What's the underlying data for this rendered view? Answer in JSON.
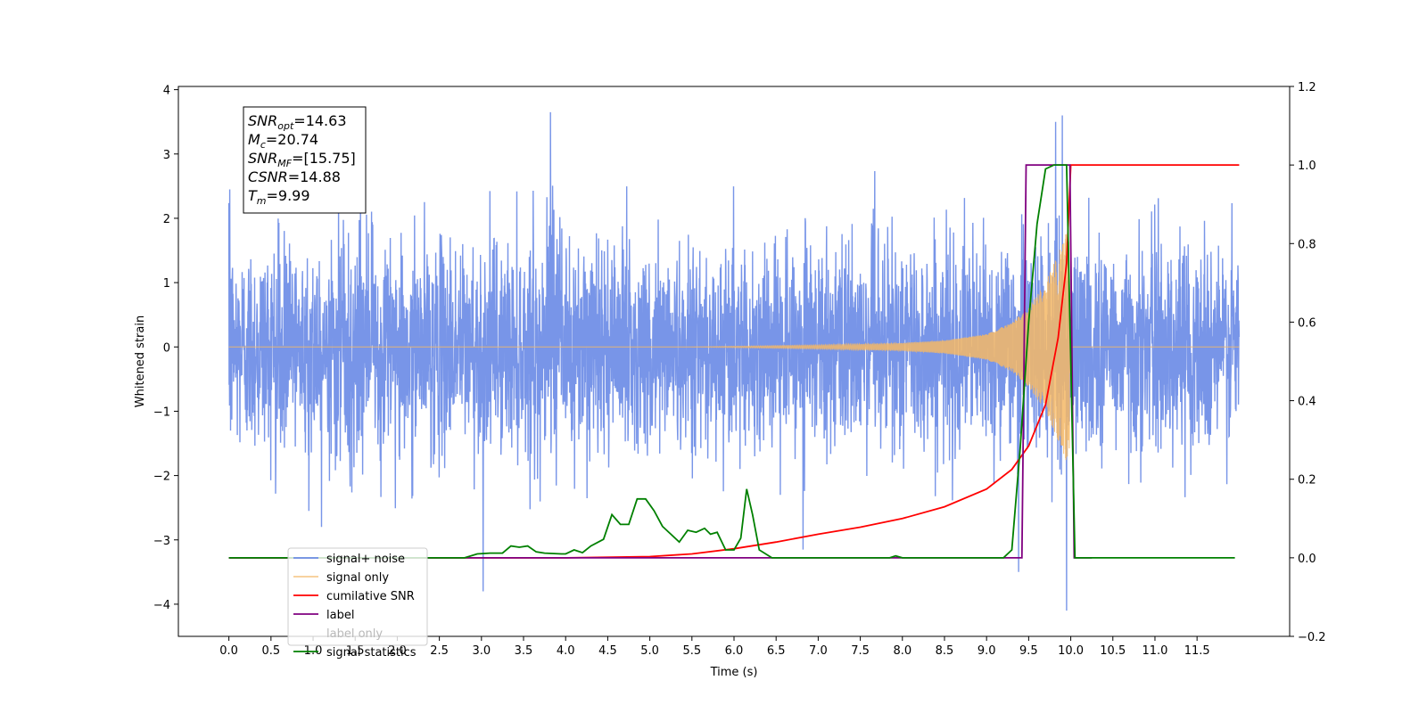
{
  "chart_data": {
    "type": "line",
    "title": "",
    "xlabel": "Time (s)",
    "ylabel": "Whitened strain",
    "y2label": "",
    "xlim": [
      -0.6,
      12.6
    ],
    "ylim": [
      -4.5,
      4.05
    ],
    "y2lim": [
      -0.2,
      1.2
    ],
    "x_ticks": [
      0.0,
      0.5,
      1.0,
      1.5,
      2.0,
      2.5,
      3.0,
      3.5,
      4.0,
      4.5,
      5.0,
      5.5,
      6.0,
      6.5,
      7.0,
      7.5,
      8.0,
      8.5,
      9.0,
      9.5,
      10.0,
      10.5,
      11.0,
      11.5
    ],
    "x_tick_labels": [
      "0.0",
      "0.5",
      "1.0",
      "1.5",
      "2.0",
      "2.5",
      "3.0",
      "3.5",
      "4.0",
      "4.5",
      "5.0",
      "5.5",
      "6.0",
      "6.5",
      "7.0",
      "7.5",
      "8.0",
      "8.5",
      "9.0",
      "9.5",
      "10.0",
      "10.5",
      "11.0",
      "11.5"
    ],
    "y_ticks": [
      4,
      3,
      2,
      1,
      0,
      -1,
      -2,
      -3,
      -4
    ],
    "y_tick_labels": [
      "4",
      "3",
      "2",
      "1",
      "0",
      "−1",
      "−2",
      "−3",
      "−4"
    ],
    "y2_ticks": [
      1.2,
      1.0,
      0.8,
      0.6,
      0.4,
      0.2,
      0.0,
      -0.2
    ],
    "y2_tick_labels": [
      "1.2",
      "1.0",
      "0.8",
      "0.6",
      "0.4",
      "0.2",
      "0.0",
      "−0.2"
    ],
    "grid": false,
    "legend_position": "lower-left",
    "series": [
      {
        "name": "signal+ noise",
        "axis": "left",
        "color": "#6d8ce6",
        "kind": "noise-band",
        "x_range": [
          0.0,
          12.0
        ],
        "typical_amplitude": 1.3,
        "peaks": [
          {
            "x": 0.01,
            "y": 2.45
          },
          {
            "x": 0.02,
            "y": -1.3
          },
          {
            "x": 0.95,
            "y": -2.55
          },
          {
            "x": 1.1,
            "y": -2.8
          },
          {
            "x": 3.02,
            "y": -3.8
          },
          {
            "x": 3.82,
            "y": 3.65
          },
          {
            "x": 6.55,
            "y": -2.3
          },
          {
            "x": 6.82,
            "y": -3.15
          },
          {
            "x": 9.38,
            "y": -3.5
          },
          {
            "x": 9.82,
            "y": 3.5
          },
          {
            "x": 9.9,
            "y": 3.6
          },
          {
            "x": 9.95,
            "y": -4.1
          }
        ]
      },
      {
        "name": "signal only",
        "axis": "left",
        "color": "#f4b866",
        "kind": "chirp",
        "x_range": [
          0.0,
          12.0
        ],
        "merger_time": 9.99,
        "envelope": [
          {
            "x": 0.0,
            "amp": 0.0
          },
          {
            "x": 5.5,
            "amp": 0.0
          },
          {
            "x": 7.0,
            "amp": 0.03
          },
          {
            "x": 8.0,
            "amp": 0.06
          },
          {
            "x": 8.5,
            "amp": 0.1
          },
          {
            "x": 9.0,
            "amp": 0.2
          },
          {
            "x": 9.3,
            "amp": 0.38
          },
          {
            "x": 9.5,
            "amp": 0.62
          },
          {
            "x": 9.7,
            "amp": 1.0
          },
          {
            "x": 9.85,
            "amp": 1.45
          },
          {
            "x": 9.95,
            "amp": 1.8
          },
          {
            "x": 9.99,
            "amp": 1.85
          },
          {
            "x": 10.01,
            "amp": 0.05
          },
          {
            "x": 10.03,
            "amp": 0.0
          },
          {
            "x": 12.0,
            "amp": 0.0
          }
        ]
      },
      {
        "name": "cumilative SNR",
        "axis": "right",
        "color": "#ff0000",
        "points": [
          {
            "x": 0.0,
            "y": 0.0
          },
          {
            "x": 4.0,
            "y": 0.0
          },
          {
            "x": 5.0,
            "y": 0.003
          },
          {
            "x": 5.5,
            "y": 0.01
          },
          {
            "x": 6.0,
            "y": 0.023
          },
          {
            "x": 6.5,
            "y": 0.04
          },
          {
            "x": 7.0,
            "y": 0.06
          },
          {
            "x": 7.5,
            "y": 0.078
          },
          {
            "x": 8.0,
            "y": 0.1
          },
          {
            "x": 8.5,
            "y": 0.13
          },
          {
            "x": 9.0,
            "y": 0.175
          },
          {
            "x": 9.3,
            "y": 0.225
          },
          {
            "x": 9.5,
            "y": 0.285
          },
          {
            "x": 9.7,
            "y": 0.39
          },
          {
            "x": 9.85,
            "y": 0.56
          },
          {
            "x": 9.95,
            "y": 0.75
          },
          {
            "x": 10.0,
            "y": 1.0
          },
          {
            "x": 12.0,
            "y": 1.0
          }
        ]
      },
      {
        "name": "label",
        "axis": "right",
        "color": "#800080",
        "points": [
          {
            "x": 0.0,
            "y": 0.0
          },
          {
            "x": 9.42,
            "y": 0.0
          },
          {
            "x": 9.47,
            "y": 1.0
          },
          {
            "x": 9.99,
            "y": 1.0
          },
          {
            "x": 10.04,
            "y": 0.0
          },
          {
            "x": 10.25,
            "y": 0.0
          }
        ]
      },
      {
        "name": "label only",
        "axis": "right",
        "color": "#888888",
        "hidden": true,
        "points": []
      },
      {
        "name": "signal statistics",
        "axis": "right",
        "color": "#008000",
        "points": [
          {
            "x": 0.0,
            "y": 0.0
          },
          {
            "x": 2.8,
            "y": 0.0
          },
          {
            "x": 2.95,
            "y": 0.01
          },
          {
            "x": 3.1,
            "y": 0.012
          },
          {
            "x": 3.25,
            "y": 0.012
          },
          {
            "x": 3.35,
            "y": 0.03
          },
          {
            "x": 3.45,
            "y": 0.027
          },
          {
            "x": 3.55,
            "y": 0.03
          },
          {
            "x": 3.65,
            "y": 0.015
          },
          {
            "x": 3.75,
            "y": 0.012
          },
          {
            "x": 3.95,
            "y": 0.01
          },
          {
            "x": 4.0,
            "y": 0.01
          },
          {
            "x": 4.1,
            "y": 0.02
          },
          {
            "x": 4.2,
            "y": 0.013
          },
          {
            "x": 4.3,
            "y": 0.03
          },
          {
            "x": 4.45,
            "y": 0.047
          },
          {
            "x": 4.55,
            "y": 0.11
          },
          {
            "x": 4.65,
            "y": 0.085
          },
          {
            "x": 4.75,
            "y": 0.085
          },
          {
            "x": 4.85,
            "y": 0.15
          },
          {
            "x": 4.95,
            "y": 0.15
          },
          {
            "x": 5.05,
            "y": 0.12
          },
          {
            "x": 5.15,
            "y": 0.08
          },
          {
            "x": 5.25,
            "y": 0.06
          },
          {
            "x": 5.35,
            "y": 0.04
          },
          {
            "x": 5.45,
            "y": 0.07
          },
          {
            "x": 5.55,
            "y": 0.065
          },
          {
            "x": 5.65,
            "y": 0.075
          },
          {
            "x": 5.72,
            "y": 0.06
          },
          {
            "x": 5.8,
            "y": 0.065
          },
          {
            "x": 5.9,
            "y": 0.02
          },
          {
            "x": 6.0,
            "y": 0.02
          },
          {
            "x": 6.08,
            "y": 0.05
          },
          {
            "x": 6.15,
            "y": 0.175
          },
          {
            "x": 6.22,
            "y": 0.11
          },
          {
            "x": 6.3,
            "y": 0.02
          },
          {
            "x": 6.45,
            "y": 0.0
          },
          {
            "x": 7.85,
            "y": 0.0
          },
          {
            "x": 7.92,
            "y": 0.005
          },
          {
            "x": 8.0,
            "y": 0.0
          },
          {
            "x": 9.2,
            "y": 0.0
          },
          {
            "x": 9.3,
            "y": 0.02
          },
          {
            "x": 9.4,
            "y": 0.28
          },
          {
            "x": 9.5,
            "y": 0.6
          },
          {
            "x": 9.6,
            "y": 0.85
          },
          {
            "x": 9.7,
            "y": 0.99
          },
          {
            "x": 9.8,
            "y": 1.0
          },
          {
            "x": 9.95,
            "y": 1.0
          },
          {
            "x": 10.0,
            "y": 0.5
          },
          {
            "x": 10.05,
            "y": 0.0
          },
          {
            "x": 11.95,
            "y": 0.0
          }
        ]
      }
    ],
    "annotation": {
      "position": "top-left",
      "lines": [
        {
          "sym": "SNR",
          "sub": "opt",
          "value": "=14.63"
        },
        {
          "sym": "M",
          "sub": "c",
          "value": "=20.74"
        },
        {
          "sym": "SNR",
          "sub": "MF",
          "value": "=[15.75]"
        },
        {
          "sym": "CSNR",
          "sub": "",
          "value": "=14.88"
        },
        {
          "sym": "T",
          "sub": "m",
          "value": "=9.99"
        }
      ]
    }
  }
}
